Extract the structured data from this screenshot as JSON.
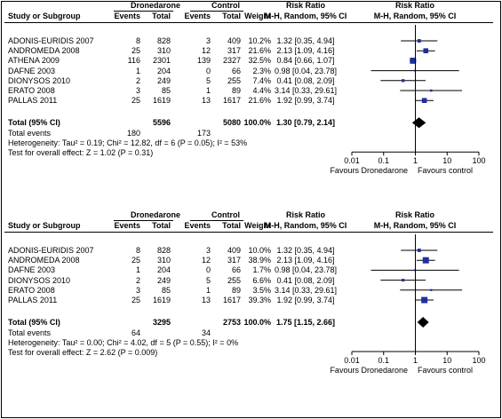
{
  "headers": {
    "study": "Study or Subgroup",
    "group1": "Dronedarone",
    "group2": "Control",
    "events": "Events",
    "total": "Total",
    "weight": "Weight",
    "rr_title": "Risk Ratio",
    "rr_method": "M-H, Random, 95% CI"
  },
  "chart_data": [
    {
      "type": "forest",
      "studies": [
        {
          "name": "ADONIS-EURIDIS 2007",
          "e1": "8",
          "n1": "828",
          "e2": "3",
          "n2": "409",
          "weight": "10.2%",
          "ci_text": "1.32 [0.35, 4.94]",
          "rr": 1.32,
          "lo": 0.35,
          "hi": 4.94
        },
        {
          "name": "ANDROMEDA 2008",
          "e1": "25",
          "n1": "310",
          "e2": "12",
          "n2": "317",
          "weight": "21.6%",
          "ci_text": "2.13 [1.09, 4.16]",
          "rr": 2.13,
          "lo": 1.09,
          "hi": 4.16
        },
        {
          "name": "ATHENA 2009",
          "e1": "116",
          "n1": "2301",
          "e2": "139",
          "n2": "2327",
          "weight": "32.5%",
          "ci_text": "0.84 [0.66, 1.07]",
          "rr": 0.84,
          "lo": 0.66,
          "hi": 1.07
        },
        {
          "name": "DAFNE 2003",
          "e1": "1",
          "n1": "204",
          "e2": "0",
          "n2": "66",
          "weight": "2.3%",
          "ci_text": "0.98 [0.04, 23.78]",
          "rr": 0.98,
          "lo": 0.04,
          "hi": 23.78
        },
        {
          "name": "DIONYSOS 2010",
          "e1": "2",
          "n1": "249",
          "e2": "5",
          "n2": "255",
          "weight": "7.4%",
          "ci_text": "0.41 [0.08, 2.09]",
          "rr": 0.41,
          "lo": 0.08,
          "hi": 2.09
        },
        {
          "name": "ERATO 2008",
          "e1": "3",
          "n1": "85",
          "e2": "1",
          "n2": "89",
          "weight": "4.4%",
          "ci_text": "3.14 [0.33, 29.61]",
          "rr": 3.14,
          "lo": 0.33,
          "hi": 29.61
        },
        {
          "name": "PALLAS 2011",
          "e1": "25",
          "n1": "1619",
          "e2": "13",
          "n2": "1617",
          "weight": "21.6%",
          "ci_text": "1.92 [0.99, 3.74]",
          "rr": 1.92,
          "lo": 0.99,
          "hi": 3.74
        }
      ],
      "total": {
        "label": "Total (95% CI)",
        "n1": "5596",
        "n2": "5080",
        "weight": "100.0%",
        "ci_text": "1.30 [0.79, 2.14]",
        "rr": 1.3,
        "lo": 0.79,
        "hi": 2.14
      },
      "total_events": {
        "label": "Total events",
        "e1": "180",
        "e2": "173"
      },
      "heterogeneity": "Heterogeneity: Tau² = 0.19; Chi² = 12.82, df = 6 (P = 0.05); I² = 53%",
      "overall_effect": "Test for overall effect: Z = 1.02 (P = 0.31)",
      "axis": {
        "scale": "log",
        "ticks": [
          "0.01",
          "0.1",
          "1",
          "10",
          "100"
        ],
        "tick_values": [
          0.01,
          0.1,
          1,
          10,
          100
        ],
        "left_label": "Favours Dronedarone",
        "right_label": "Favours control"
      }
    },
    {
      "type": "forest",
      "studies": [
        {
          "name": "ADONIS-EURIDIS 2007",
          "e1": "8",
          "n1": "828",
          "e2": "3",
          "n2": "409",
          "weight": "10.0%",
          "ci_text": "1.32 [0.35, 4.94]",
          "rr": 1.32,
          "lo": 0.35,
          "hi": 4.94
        },
        {
          "name": "ANDROMEDA 2008",
          "e1": "25",
          "n1": "310",
          "e2": "12",
          "n2": "317",
          "weight": "38.9%",
          "ci_text": "2.13 [1.09, 4.16]",
          "rr": 2.13,
          "lo": 1.09,
          "hi": 4.16
        },
        {
          "name": "DAFNE 2003",
          "e1": "1",
          "n1": "204",
          "e2": "0",
          "n2": "66",
          "weight": "1.7%",
          "ci_text": "0.98 [0.04, 23.78]",
          "rr": 0.98,
          "lo": 0.04,
          "hi": 23.78
        },
        {
          "name": "DIONYSOS 2010",
          "e1": "2",
          "n1": "249",
          "e2": "5",
          "n2": "255",
          "weight": "6.6%",
          "ci_text": "0.41 [0.08, 2.09]",
          "rr": 0.41,
          "lo": 0.08,
          "hi": 2.09
        },
        {
          "name": "ERATO 2008",
          "e1": "3",
          "n1": "85",
          "e2": "1",
          "n2": "89",
          "weight": "3.5%",
          "ci_text": "3.14 [0.33, 29.61]",
          "rr": 3.14,
          "lo": 0.33,
          "hi": 29.61
        },
        {
          "name": "PALLAS 2011",
          "e1": "25",
          "n1": "1619",
          "e2": "13",
          "n2": "1617",
          "weight": "39.3%",
          "ci_text": "1.92 [0.99, 3.74]",
          "rr": 1.92,
          "lo": 0.99,
          "hi": 3.74
        }
      ],
      "total": {
        "label": "Total (95% CI)",
        "n1": "3295",
        "n2": "2753",
        "weight": "100.0%",
        "ci_text": "1.75 [1.15, 2.66]",
        "rr": 1.75,
        "lo": 1.15,
        "hi": 2.66
      },
      "total_events": {
        "label": "Total events",
        "e1": "64",
        "e2": "34"
      },
      "heterogeneity": "Heterogeneity: Tau² = 0.00; Chi² = 4.02, df = 5 (P = 0.55); I² = 0%",
      "overall_effect": "Test for overall effect: Z = 2.62 (P = 0.009)",
      "axis": {
        "scale": "log",
        "ticks": [
          "0.01",
          "0.1",
          "1",
          "10",
          "100"
        ],
        "tick_values": [
          0.01,
          0.1,
          1,
          10,
          100
        ],
        "left_label": "Favours Dronedarone",
        "right_label": "Favours control"
      }
    }
  ]
}
